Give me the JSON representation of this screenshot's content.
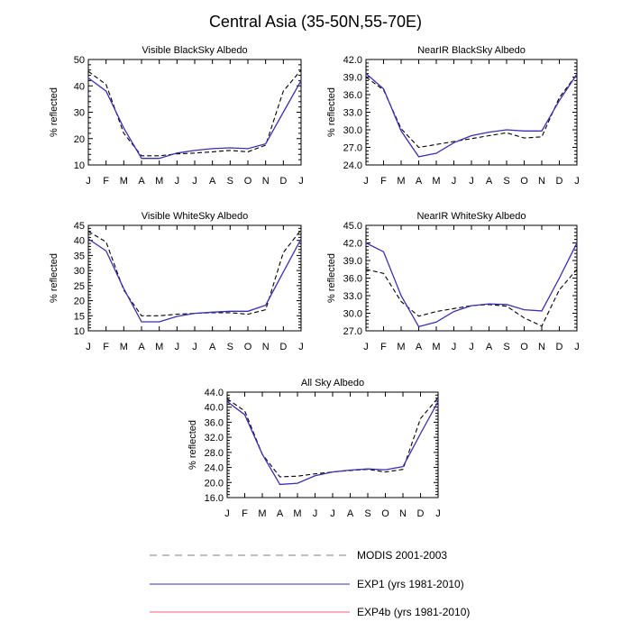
{
  "title": "Central Asia (35-50N,55-70E)",
  "colors": {
    "exp1": "#3a2fb0",
    "exp4b": "#ff5a7a",
    "modis": "#000000",
    "legend_modis": "#999999"
  },
  "legend": [
    {
      "label": "MODIS 2001-2003",
      "style": "dashed"
    },
    {
      "label": "EXP1 (yrs 1981-2010)",
      "style": "solid-blue"
    },
    {
      "label": "EXP4b (yrs 1981-2010)",
      "style": "solid-red"
    }
  ],
  "chart_data": [
    {
      "type": "line",
      "title": "Visible BlackSky Albedo",
      "ylabel": "% reflected",
      "categories": [
        "J",
        "F",
        "M",
        "A",
        "M",
        "J",
        "J",
        "A",
        "S",
        "O",
        "N",
        "D",
        "J"
      ],
      "ylim": [
        10,
        50
      ],
      "yticks": [
        "10",
        "20",
        "30",
        "40",
        "50"
      ],
      "series": [
        {
          "key": "modis",
          "values": [
            45.5,
            40.5,
            22.0,
            13.5,
            13.5,
            14.2,
            14.5,
            15.0,
            15.5,
            15.0,
            17.5,
            38.0,
            46.0
          ]
        },
        {
          "key": "exp1",
          "values": [
            43.0,
            38.0,
            24.0,
            12.5,
            12.5,
            14.5,
            15.5,
            16.2,
            16.5,
            16.2,
            18.0,
            30.0,
            42.0
          ]
        }
      ]
    },
    {
      "type": "line",
      "title": "NearIR BlackSky Albedo",
      "ylabel": "% reflected",
      "categories": [
        "J",
        "F",
        "M",
        "A",
        "M",
        "J",
        "J",
        "A",
        "S",
        "O",
        "N",
        "D",
        "J"
      ],
      "ylim": [
        24,
        42
      ],
      "yticks": [
        "24.0",
        "27.0",
        "30.0",
        "33.0",
        "36.0",
        "39.0",
        "42.0"
      ],
      "series": [
        {
          "key": "modis",
          "values": [
            39.0,
            36.8,
            30.2,
            27.0,
            27.5,
            28.0,
            28.5,
            29.0,
            29.5,
            28.6,
            28.8,
            35.5,
            39.5
          ]
        },
        {
          "key": "exp1",
          "values": [
            39.6,
            37.0,
            29.8,
            25.4,
            26.0,
            27.8,
            29.0,
            29.6,
            30.0,
            29.8,
            29.8,
            35.0,
            39.5
          ]
        }
      ]
    },
    {
      "type": "line",
      "title": "Visible WhiteSky Albedo",
      "ylabel": "% reflected",
      "categories": [
        "J",
        "F",
        "M",
        "A",
        "M",
        "J",
        "J",
        "A",
        "S",
        "O",
        "N",
        "D",
        "J"
      ],
      "ylim": [
        10,
        45
      ],
      "yticks": [
        "10",
        "15",
        "20",
        "25",
        "30",
        "35",
        "40",
        "45"
      ],
      "series": [
        {
          "key": "modis",
          "values": [
            43.0,
            39.5,
            23.5,
            15.0,
            15.0,
            15.5,
            15.8,
            16.0,
            16.0,
            15.5,
            17.0,
            36.0,
            43.5
          ]
        },
        {
          "key": "exp1",
          "values": [
            40.5,
            36.5,
            24.0,
            13.0,
            13.0,
            14.8,
            15.8,
            16.2,
            16.5,
            16.5,
            18.5,
            29.5,
            40.5
          ]
        }
      ]
    },
    {
      "type": "line",
      "title": "NearIR WhiteSky Albedo",
      "ylabel": "% reflected",
      "categories": [
        "J",
        "F",
        "M",
        "A",
        "M",
        "J",
        "J",
        "A",
        "S",
        "O",
        "N",
        "D",
        "J"
      ],
      "ylim": [
        27,
        45
      ],
      "yticks": [
        "27.0",
        "30.0",
        "33.0",
        "36.0",
        "39.0",
        "42.0",
        "45.0"
      ],
      "series": [
        {
          "key": "modis",
          "values": [
            37.5,
            36.8,
            32.0,
            29.5,
            30.3,
            30.8,
            31.3,
            31.5,
            31.2,
            29.2,
            27.8,
            34.0,
            37.5
          ]
        },
        {
          "key": "exp1",
          "values": [
            42.0,
            40.5,
            33.0,
            27.7,
            28.5,
            30.3,
            31.3,
            31.6,
            31.5,
            30.6,
            30.4,
            36.0,
            42.0
          ]
        }
      ]
    },
    {
      "type": "line",
      "title": "All Sky Albedo",
      "ylabel": "% reflected",
      "categories": [
        "J",
        "F",
        "M",
        "A",
        "M",
        "J",
        "J",
        "A",
        "S",
        "O",
        "N",
        "D",
        "J"
      ],
      "ylim": [
        16,
        44
      ],
      "yticks": [
        "16.0",
        "20.0",
        "24.0",
        "28.0",
        "32.0",
        "36.0",
        "40.0",
        "44.0"
      ],
      "series": [
        {
          "key": "modis",
          "values": [
            42.2,
            39.0,
            27.5,
            21.5,
            21.7,
            22.3,
            22.8,
            23.2,
            23.5,
            22.8,
            23.5,
            37.0,
            42.5
          ]
        },
        {
          "key": "exp1",
          "values": [
            41.5,
            38.0,
            27.5,
            19.5,
            19.8,
            21.8,
            22.8,
            23.3,
            23.6,
            23.4,
            24.2,
            33.0,
            41.5
          ]
        }
      ]
    }
  ]
}
